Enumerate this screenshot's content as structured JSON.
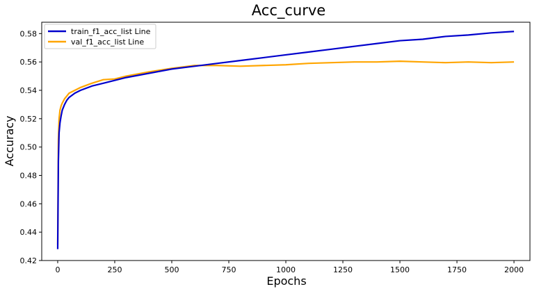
{
  "chart_data": {
    "type": "line",
    "title": "Acc_curve",
    "xlabel": "Epochs",
    "ylabel": "Accuracy",
    "xlim": [
      -70,
      2070
    ],
    "ylim": [
      0.42,
      0.588
    ],
    "xticks": [
      0,
      250,
      500,
      750,
      1000,
      1250,
      1500,
      1750,
      2000
    ],
    "yticks": [
      0.42,
      0.44,
      0.46,
      0.48,
      0.5,
      0.52,
      0.54,
      0.56,
      0.58
    ],
    "xtick_labels": [
      "0",
      "250",
      "500",
      "750",
      "1000",
      "1250",
      "1500",
      "1750",
      "2000"
    ],
    "ytick_labels": [
      "0.42",
      "0.44",
      "0.46",
      "0.48",
      "0.50",
      "0.52",
      "0.54",
      "0.56",
      "0.58"
    ],
    "grid": false,
    "legend_position": "top-left",
    "series": [
      {
        "name": "train_f1_acc_list Line",
        "color": "#0000cc",
        "x": [
          0,
          3,
          6,
          10,
          15,
          20,
          30,
          40,
          50,
          75,
          100,
          150,
          200,
          250,
          300,
          400,
          500,
          600,
          700,
          800,
          900,
          1000,
          1100,
          1200,
          1300,
          1400,
          1500,
          1600,
          1700,
          1800,
          1900,
          2000
        ],
        "y": [
          0.428,
          0.49,
          0.51,
          0.517,
          0.522,
          0.526,
          0.53,
          0.533,
          0.535,
          0.538,
          0.54,
          0.543,
          0.545,
          0.547,
          0.549,
          0.552,
          0.555,
          0.557,
          0.559,
          0.561,
          0.563,
          0.565,
          0.567,
          0.569,
          0.571,
          0.573,
          0.575,
          0.576,
          0.578,
          0.579,
          0.5805,
          0.5815
        ]
      },
      {
        "name": "val_f1_acc_list Line",
        "color": "#ffa500",
        "x": [
          0,
          3,
          6,
          10,
          15,
          20,
          30,
          40,
          50,
          75,
          100,
          150,
          200,
          250,
          300,
          400,
          500,
          600,
          700,
          800,
          900,
          1000,
          1100,
          1200,
          1300,
          1400,
          1500,
          1600,
          1700,
          1800,
          1900,
          2000
        ],
        "y": [
          0.431,
          0.505,
          0.52,
          0.526,
          0.529,
          0.531,
          0.534,
          0.536,
          0.538,
          0.54,
          0.542,
          0.545,
          0.5475,
          0.548,
          0.55,
          0.553,
          0.5555,
          0.5575,
          0.5575,
          0.557,
          0.5575,
          0.558,
          0.559,
          0.5595,
          0.56,
          0.56,
          0.5605,
          0.56,
          0.5595,
          0.56,
          0.5595,
          0.56
        ]
      }
    ]
  }
}
